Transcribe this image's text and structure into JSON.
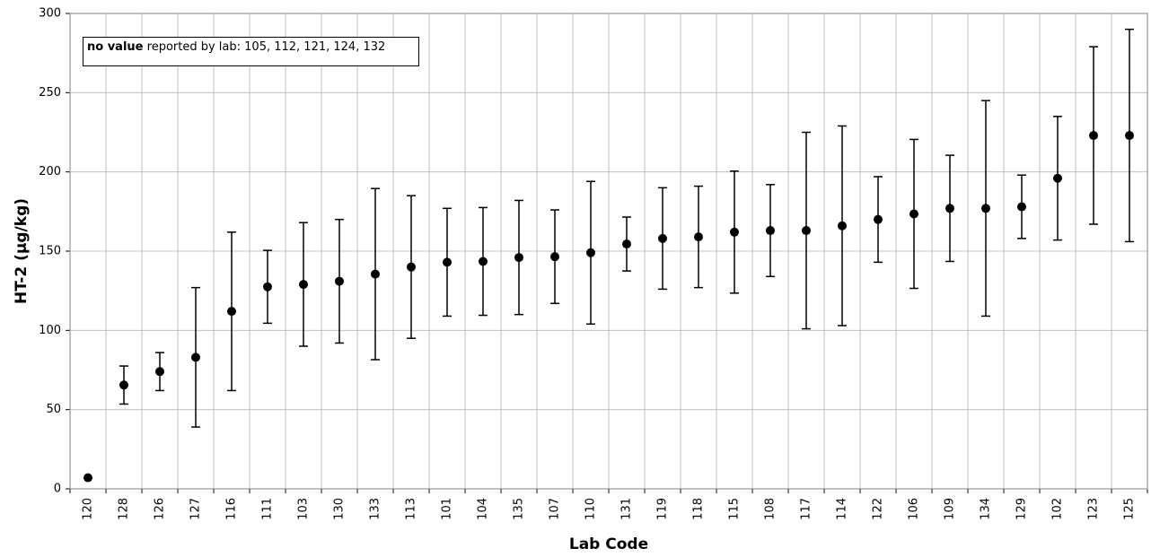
{
  "chart_data": {
    "type": "errorbar",
    "ylabel": "HT-2 (µg/kg)",
    "xlabel": "Lab Code",
    "annotation": {
      "bold": "no value",
      "text": "reported by lab: 105, 112, 121, 124, 132"
    },
    "categories": [
      "120",
      "128",
      "126",
      "127",
      "116",
      "111",
      "103",
      "130",
      "133",
      "113",
      "101",
      "104",
      "135",
      "107",
      "110",
      "131",
      "119",
      "118",
      "115",
      "108",
      "117",
      "114",
      "122",
      "106",
      "109",
      "134",
      "129",
      "102",
      "123",
      "125"
    ],
    "values": [
      7,
      65.5,
      74,
      83,
      112,
      127.5,
      129,
      131,
      135.5,
      140,
      143,
      143.5,
      146,
      146.5,
      149,
      154.5,
      158,
      159,
      162,
      163,
      163,
      166,
      170,
      173.5,
      177,
      177,
      178,
      196,
      223,
      223
    ],
    "errors": [
      null,
      12,
      12,
      44,
      50,
      23,
      39,
      39,
      54,
      45,
      34,
      34,
      36,
      29.5,
      45,
      17,
      32,
      32,
      38.5,
      29,
      62,
      63,
      27,
      47,
      33.5,
      68,
      20,
      39,
      56,
      67
    ],
    "color": "#000000",
    "ylim": [
      0,
      300
    ],
    "yticks": [
      0,
      50,
      100,
      150,
      200,
      250,
      300
    ],
    "grid": true
  }
}
